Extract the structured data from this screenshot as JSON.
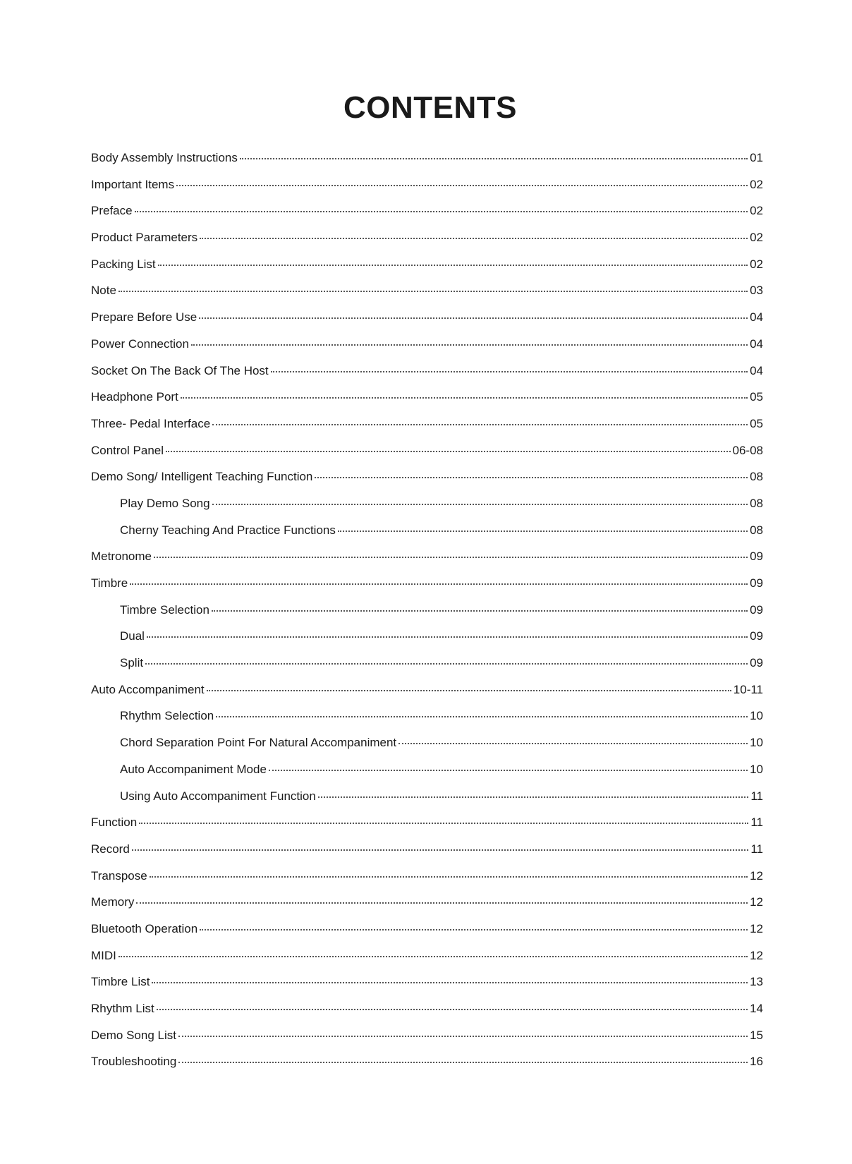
{
  "title": "CONTENTS",
  "entries": [
    {
      "label": "Body Assembly Instructions",
      "page": "01",
      "level": 0
    },
    {
      "label": "Important Items",
      "page": "02",
      "level": 0
    },
    {
      "label": "Preface",
      "page": "02",
      "level": 0
    },
    {
      "label": "Product Parameters",
      "page": "02",
      "level": 0
    },
    {
      "label": "Packing List",
      "page": "02",
      "level": 0
    },
    {
      "label": "Note",
      "page": "03",
      "level": 0
    },
    {
      "label": "Prepare Before Use",
      "page": "04",
      "level": 0
    },
    {
      "label": "Power Connection",
      "page": "04",
      "level": 0
    },
    {
      "label": "Socket On The Back Of The Host",
      "page": "04",
      "level": 0
    },
    {
      "label": "Headphone Port",
      "page": "05",
      "level": 0
    },
    {
      "label": "Three- Pedal Interface",
      "page": "05",
      "level": 0
    },
    {
      "label": "Control Panel",
      "page": "06-08",
      "level": 0
    },
    {
      "label": "Demo Song/ Intelligent Teaching Function",
      "page": "08",
      "level": 0
    },
    {
      "label": "Play Demo Song",
      "page": "08",
      "level": 1
    },
    {
      "label": "Cherny Teaching And Practice Functions",
      "page": "08",
      "level": 1
    },
    {
      "label": "Metronome",
      "page": "09",
      "level": 0
    },
    {
      "label": "Timbre",
      "page": "09",
      "level": 0
    },
    {
      "label": "Timbre Selection",
      "page": "09",
      "level": 1
    },
    {
      "label": "Dual",
      "page": "09",
      "level": 1
    },
    {
      "label": "Split",
      "page": "09",
      "level": 1
    },
    {
      "label": "Auto Accompaniment",
      "page": "10-11",
      "level": 0
    },
    {
      "label": "Rhythm Selection",
      "page": "10",
      "level": 1
    },
    {
      "label": "Chord Separation Point For Natural Accompaniment",
      "page": "10",
      "level": 1
    },
    {
      "label": "Auto Accompaniment Mode",
      "page": "10",
      "level": 1
    },
    {
      "label": "Using Auto Accompaniment Function",
      "page": "11",
      "level": 1
    },
    {
      "label": "Function",
      "page": "11",
      "level": 0
    },
    {
      "label": "Record",
      "page": "11",
      "level": 0
    },
    {
      "label": "Transpose",
      "page": "12",
      "level": 0
    },
    {
      "label": "Memory",
      "page": "12",
      "level": 0
    },
    {
      "label": "Bluetooth Operation",
      "page": "12",
      "level": 0
    },
    {
      "label": "MIDI",
      "page": "12",
      "level": 0
    },
    {
      "label": "Timbre List",
      "page": "13",
      "level": 0
    },
    {
      "label": "Rhythm List",
      "page": "14",
      "level": 0
    },
    {
      "label": "Demo Song List",
      "page": "15",
      "level": 0
    },
    {
      "label": "Troubleshooting",
      "page": "16",
      "level": 0
    }
  ]
}
